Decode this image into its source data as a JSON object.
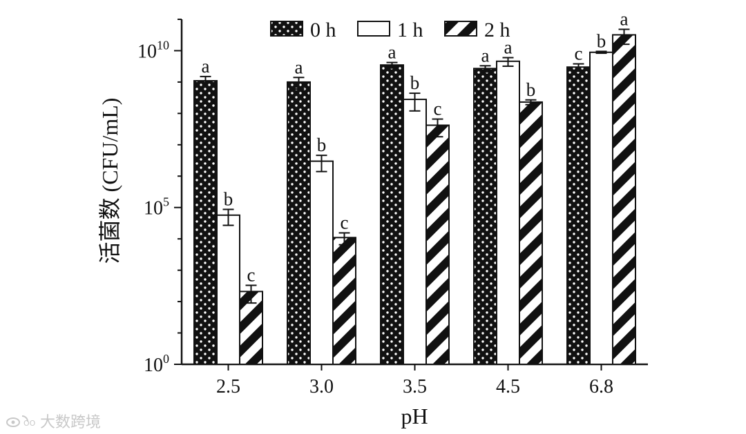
{
  "chart_data": {
    "type": "bar",
    "title": "",
    "xlabel": "pH",
    "ylabel": "活菌数 (CFU/mL)",
    "yscale": "log",
    "ylim": [
      1,
      100000000000.0
    ],
    "yticks": [
      {
        "value": 1,
        "base": "10",
        "exp": "0"
      },
      {
        "value": 100000,
        "base": "10",
        "exp": "5"
      },
      {
        "value": 10000000000,
        "base": "10",
        "exp": "10"
      }
    ],
    "categories": [
      "2.5",
      "3.0",
      "3.5",
      "4.5",
      "6.8"
    ],
    "series": [
      {
        "name": "0 h",
        "pattern": "dots",
        "values": [
          1100000000.0,
          1000000000.0,
          3500000000.0,
          2700000000.0,
          3000000000.0
        ],
        "errors": [
          400000000.0,
          400000000.0,
          700000000.0,
          600000000.0,
          800000000.0
        ],
        "letters": [
          "a",
          "a",
          "a",
          "a",
          "c"
        ]
      },
      {
        "name": "1 h",
        "pattern": "open",
        "values": [
          57000,
          3000000.0,
          280000000.0,
          4600000000.0,
          8900000000.0
        ],
        "errors": [
          30000,
          1600000.0,
          160000000.0,
          1400000000.0,
          600000000.0
        ],
        "letters": [
          "b",
          "b",
          "b",
          "a",
          "b"
        ]
      },
      {
        "name": "2 h",
        "pattern": "stripes",
        "values": [
          210,
          11000,
          42000000.0,
          230000000.0,
          32000000000.0
        ],
        "errors": [
          120,
          4500,
          24000000.0,
          40000000.0,
          16000000000.0
        ],
        "letters": [
          "c",
          "c",
          "c",
          "b",
          "a"
        ]
      }
    ],
    "legend": {
      "position": "top-center"
    },
    "grid": false
  },
  "watermark": {
    "text": "大数跨境",
    "logo": "weibo-logo-icon"
  },
  "colors": {
    "bar_dark": "#111111",
    "bar_light": "#ffffff",
    "axis": "#111111"
  }
}
